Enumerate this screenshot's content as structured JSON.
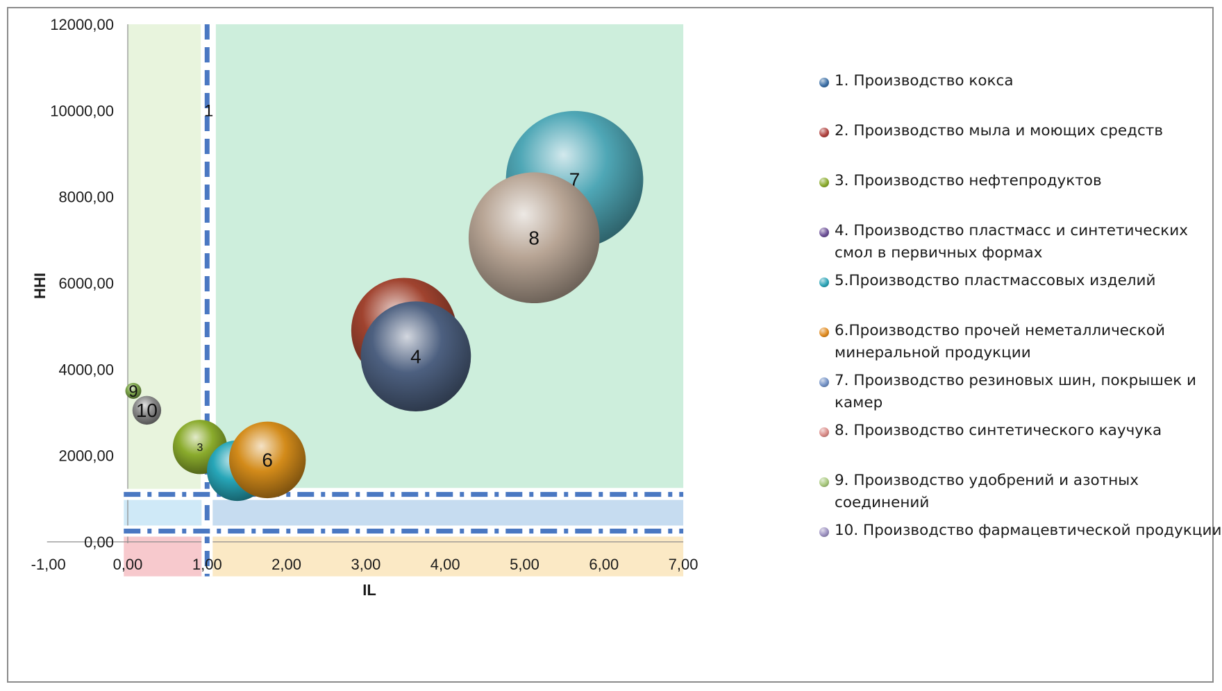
{
  "chart_data": {
    "type": "bubble",
    "xlabel": "IL",
    "ylabel": "HHI",
    "xlim": [
      -1,
      7
    ],
    "ylim": [
      0,
      12000
    ],
    "x_ticks": [
      "-1,00",
      "0,00",
      "1,00",
      "2,00",
      "3,00",
      "4,00",
      "5,00",
      "6,00",
      "7,00"
    ],
    "y_ticks": [
      "0,00",
      "2000,00",
      "4000,00",
      "6000,00",
      "8000,00",
      "10000,00",
      "12000,00"
    ],
    "grid": false,
    "legend_position": "right",
    "points": [
      {
        "label": "1",
        "x": 1.02,
        "y": 10000,
        "size": 0.0,
        "color": "#3a6ea5"
      },
      {
        "label": "2",
        "x": 3.48,
        "y": 4900,
        "size": 0.66,
        "color": "#a0432f"
      },
      {
        "label": "3",
        "x": 0.91,
        "y": 2200,
        "size": 0.34,
        "color": "#8aab2c"
      },
      {
        "label": "4",
        "x": 3.63,
        "y": 4300,
        "size": 0.69,
        "color": "#4d6080"
      },
      {
        "label": "5",
        "x": 1.38,
        "y": 1650,
        "size": 0.38,
        "color": "#27a6b8"
      },
      {
        "label": "6",
        "x": 1.76,
        "y": 1900,
        "size": 0.48,
        "color": "#d38b1a"
      },
      {
        "label": "7",
        "x": 5.63,
        "y": 8400,
        "size": 0.86,
        "color": "#4fa7b6"
      },
      {
        "label": "8",
        "x": 5.12,
        "y": 7050,
        "size": 0.82,
        "color": "#b8a595"
      },
      {
        "label": "9",
        "x": 0.07,
        "y": 3500,
        "size": 0.1,
        "color": "#7fa84d"
      },
      {
        "label": "10",
        "x": 0.24,
        "y": 3050,
        "size": 0.18,
        "color": "#8c8c8c"
      }
    ],
    "regions": [
      {
        "x0": 0.0,
        "x1": 0.92,
        "y0": 1100,
        "y1": 12000,
        "color": "#e8f4dd"
      },
      {
        "x0": 1.11,
        "x1": 7.0,
        "y0": 1250,
        "y1": 12000,
        "color": "#cdeedc"
      },
      {
        "x0": -0.05,
        "x1": 0.97,
        "y0": 250,
        "y1": 1050,
        "color": "#cfe9f7"
      },
      {
        "x0": 1.03,
        "x1": 7.0,
        "y0": 250,
        "y1": 1050,
        "color": "#c6dcf0"
      },
      {
        "x0": -0.05,
        "x1": 0.97,
        "y0": -800,
        "y1": 200,
        "color": "#f7c9cd"
      },
      {
        "x0": 1.03,
        "x1": 7.0,
        "y0": -800,
        "y1": 200,
        "color": "#fbe9c5"
      }
    ],
    "dashed_lines": [
      {
        "orientation": "vertical",
        "value": 1.0,
        "from": -800,
        "to": 12000
      },
      {
        "orientation": "horizontal",
        "value": 1100,
        "from": -0.05,
        "to": 7.0
      },
      {
        "orientation": "horizontal",
        "value": 250,
        "from": -0.05,
        "to": 7.0
      }
    ],
    "series": [
      {
        "name": "1. Производство кокса",
        "color": "#3a6ea5"
      },
      {
        "name": "2. Производство мыла и моющих средств",
        "color": "#b0413e"
      },
      {
        "name": "3. Производство нефтепродуктов",
        "color": "#8aab2c"
      },
      {
        "name": "4. Производство пластмасс и синтетических смол в первичных формах",
        "color": "#6b4f96"
      },
      {
        "name": "5.Производство пластмассовых изделий",
        "color": "#2aa3b6"
      },
      {
        "name": "6.Производство прочей неметаллической минеральной продукции",
        "color": "#e08a1e"
      },
      {
        "name": "7. Производство резиновых шин, покрышек и камер",
        "color": "#6f8fc4"
      },
      {
        "name": "8. Производство синтетического каучука",
        "color": "#d98a86"
      },
      {
        "name": "9. Производство удобрений и азотных соединений",
        "color": "#a6c77a"
      },
      {
        "name": "10. Производство фармацевтической продукции",
        "color": "#9a8fbf"
      }
    ]
  }
}
